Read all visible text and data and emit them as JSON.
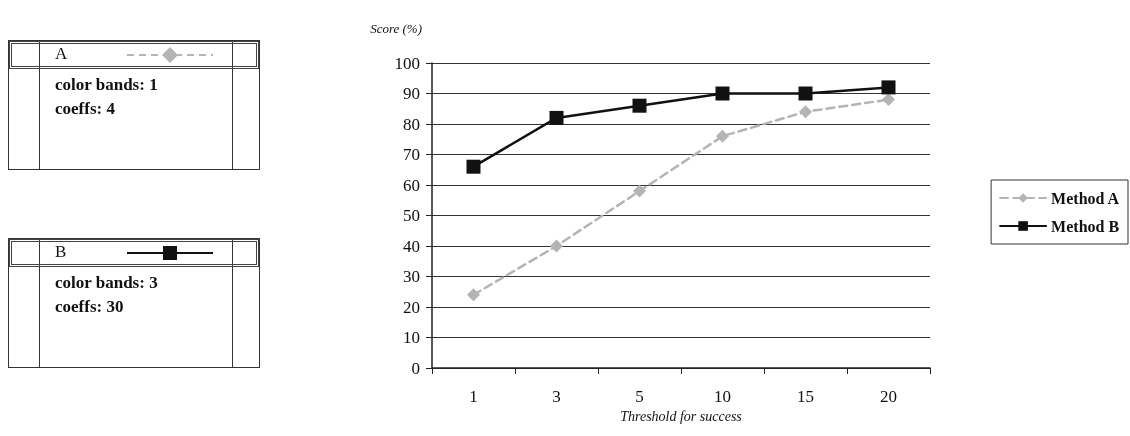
{
  "chart_data": {
    "type": "line",
    "xlabel": "Threshold for success",
    "ylabel": "Score (%)",
    "categories": [
      "1",
      "3",
      "5",
      "10",
      "15",
      "20"
    ],
    "series": [
      {
        "name": "Method A",
        "color": "#b4b4b4",
        "marker": "diamond",
        "line_style": "dashed",
        "values": [
          24,
          40,
          58,
          76,
          84,
          88
        ]
      },
      {
        "name": "Method B",
        "color": "#111111",
        "marker": "square",
        "line_style": "solid",
        "values": [
          66,
          82,
          86,
          90,
          90,
          92
        ]
      }
    ],
    "ylim": [
      0,
      100
    ],
    "yticks": [
      0,
      10,
      20,
      30,
      40,
      50,
      60,
      70,
      80,
      90,
      100
    ],
    "grid": "y",
    "legend": "right",
    "annotations": [
      "A",
      "color bands: 1",
      "coeffs: 4",
      "B",
      "color bands: 3",
      "coeffs: 30"
    ]
  }
}
